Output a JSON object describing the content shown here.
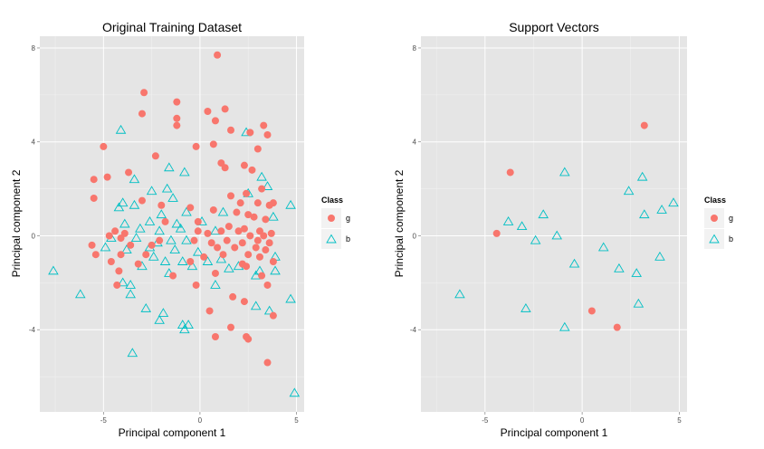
{
  "colors": {
    "panel_bg": "#e5e5e5",
    "grid_major": "#ffffff",
    "grid_minor": "#f2f2f2",
    "class_g": "#f8766d",
    "class_b": "#00bfc4"
  },
  "chart_data": [
    {
      "type": "scatter",
      "title": "Original Training Dataset",
      "xlabel": "Principal component 1",
      "ylabel": "Principal component 2",
      "xlim": [
        -8.3,
        5.4
      ],
      "ylim": [
        -7.5,
        8.5
      ],
      "xticks": [
        -5,
        0,
        5
      ],
      "yticks": [
        -4,
        0,
        4,
        8
      ],
      "grid": true,
      "legend": {
        "title": "Class",
        "position": "right",
        "entries": [
          {
            "label": "g",
            "shape": "circle"
          },
          {
            "label": "b",
            "shape": "triangle"
          }
        ]
      },
      "series": [
        {
          "name": "g",
          "shape": "circle",
          "points": [
            [
              0.9,
              7.7
            ],
            [
              -2.9,
              6.1
            ],
            [
              -1.2,
              5.7
            ],
            [
              -3.0,
              5.2
            ],
            [
              0.4,
              5.3
            ],
            [
              1.3,
              5.4
            ],
            [
              -1.2,
              5.0
            ],
            [
              -1.2,
              4.7
            ],
            [
              0.8,
              4.9
            ],
            [
              3.3,
              4.7
            ],
            [
              1.6,
              4.5
            ],
            [
              2.6,
              4.4
            ],
            [
              3.5,
              4.3
            ],
            [
              -5.0,
              3.8
            ],
            [
              -0.2,
              3.8
            ],
            [
              0.7,
              3.9
            ],
            [
              3.0,
              3.7
            ],
            [
              -2.3,
              3.4
            ],
            [
              1.1,
              3.1
            ],
            [
              2.3,
              3.0
            ],
            [
              -3.7,
              2.7
            ],
            [
              2.7,
              2.8
            ],
            [
              1.3,
              2.9
            ],
            [
              -5.5,
              2.4
            ],
            [
              -4.8,
              2.5
            ],
            [
              3.2,
              2.0
            ],
            [
              -5.5,
              1.6
            ],
            [
              2.4,
              1.8
            ],
            [
              -3.0,
              1.5
            ],
            [
              1.6,
              1.7
            ],
            [
              2.1,
              1.4
            ],
            [
              -2.0,
              1.3
            ],
            [
              3.0,
              1.4
            ],
            [
              3.6,
              1.3
            ],
            [
              -0.5,
              1.2
            ],
            [
              0.7,
              1.1
            ],
            [
              1.9,
              1.0
            ],
            [
              3.8,
              1.4
            ],
            [
              2.5,
              0.9
            ],
            [
              3.4,
              0.7
            ],
            [
              -1.8,
              0.6
            ],
            [
              -0.1,
              0.6
            ],
            [
              2.8,
              0.8
            ],
            [
              1.5,
              0.4
            ],
            [
              2.3,
              0.3
            ],
            [
              3.1,
              0.2
            ],
            [
              3.7,
              0.1
            ],
            [
              -4.4,
              0.2
            ],
            [
              -3.9,
              0.1
            ],
            [
              -0.1,
              0.2
            ],
            [
              0.4,
              0.1
            ],
            [
              1.1,
              0.2
            ],
            [
              2.0,
              0.2
            ],
            [
              2.6,
              0.0
            ],
            [
              3.3,
              0.0
            ],
            [
              -4.7,
              0.0
            ],
            [
              -4.1,
              -0.1
            ],
            [
              -2.1,
              -0.2
            ],
            [
              -0.3,
              -0.2
            ],
            [
              0.6,
              -0.3
            ],
            [
              1.4,
              -0.2
            ],
            [
              2.2,
              -0.3
            ],
            [
              3.0,
              -0.2
            ],
            [
              3.6,
              -0.3
            ],
            [
              -5.6,
              -0.4
            ],
            [
              -3.6,
              -0.4
            ],
            [
              -2.5,
              -0.4
            ],
            [
              0.9,
              -0.5
            ],
            [
              1.8,
              -0.5
            ],
            [
              2.9,
              -0.5
            ],
            [
              3.4,
              -0.6
            ],
            [
              -5.4,
              -0.8
            ],
            [
              -4.1,
              -0.8
            ],
            [
              -2.8,
              -0.8
            ],
            [
              0.2,
              -0.9
            ],
            [
              1.2,
              -0.8
            ],
            [
              2.5,
              -0.8
            ],
            [
              3.1,
              -0.9
            ],
            [
              -4.6,
              -1.1
            ],
            [
              -3.2,
              -1.2
            ],
            [
              -0.5,
              -1.1
            ],
            [
              2.2,
              -1.2
            ],
            [
              3.8,
              -1.1
            ],
            [
              -4.2,
              -1.5
            ],
            [
              -1.4,
              -1.7
            ],
            [
              0.8,
              -1.6
            ],
            [
              2.4,
              -1.3
            ],
            [
              3.2,
              -1.7
            ],
            [
              -4.3,
              -2.1
            ],
            [
              -0.2,
              -2.1
            ],
            [
              3.5,
              -2.1
            ],
            [
              1.7,
              -2.6
            ],
            [
              2.3,
              -2.8
            ],
            [
              0.5,
              -3.2
            ],
            [
              3.8,
              -3.4
            ],
            [
              1.6,
              -3.9
            ],
            [
              2.4,
              -4.3
            ],
            [
              0.8,
              -4.3
            ],
            [
              2.5,
              -4.4
            ],
            [
              3.5,
              -5.4
            ]
          ]
        },
        {
          "name": "b",
          "shape": "triangle",
          "points": [
            [
              -4.1,
              4.5
            ],
            [
              2.4,
              4.4
            ],
            [
              -1.6,
              2.9
            ],
            [
              -0.8,
              2.7
            ],
            [
              3.2,
              2.5
            ],
            [
              -3.4,
              2.4
            ],
            [
              3.5,
              2.1
            ],
            [
              -1.7,
              2.0
            ],
            [
              2.5,
              1.8
            ],
            [
              -2.5,
              1.9
            ],
            [
              -1.4,
              1.6
            ],
            [
              -4.0,
              1.4
            ],
            [
              -3.4,
              1.3
            ],
            [
              -4.2,
              1.2
            ],
            [
              4.7,
              1.3
            ],
            [
              -0.7,
              1.0
            ],
            [
              1.2,
              1.0
            ],
            [
              -2.0,
              0.9
            ],
            [
              3.8,
              0.8
            ],
            [
              -3.9,
              0.5
            ],
            [
              -2.6,
              0.6
            ],
            [
              -1.2,
              0.5
            ],
            [
              0.1,
              0.6
            ],
            [
              -3.1,
              0.3
            ],
            [
              -2.1,
              0.2
            ],
            [
              -1.0,
              0.3
            ],
            [
              0.8,
              0.2
            ],
            [
              -4.6,
              -0.1
            ],
            [
              -3.3,
              -0.1
            ],
            [
              -2.2,
              -0.3
            ],
            [
              -1.5,
              -0.2
            ],
            [
              -0.7,
              -0.2
            ],
            [
              -2.6,
              -0.5
            ],
            [
              -1.3,
              -0.6
            ],
            [
              -0.1,
              -0.7
            ],
            [
              -4.9,
              -0.5
            ],
            [
              -3.8,
              -0.6
            ],
            [
              -2.4,
              -0.9
            ],
            [
              -1.8,
              -1.1
            ],
            [
              -0.9,
              -1.1
            ],
            [
              0.4,
              -1.1
            ],
            [
              1.1,
              -1.0
            ],
            [
              2.0,
              -1.3
            ],
            [
              3.9,
              -0.9
            ],
            [
              -3.0,
              -1.3
            ],
            [
              -0.4,
              -1.3
            ],
            [
              1.5,
              -1.4
            ],
            [
              3.1,
              -1.5
            ],
            [
              -7.6,
              -1.5
            ],
            [
              -1.6,
              -1.6
            ],
            [
              3.9,
              -1.5
            ],
            [
              2.9,
              -1.7
            ],
            [
              -4.0,
              -2.0
            ],
            [
              -3.6,
              -2.1
            ],
            [
              0.8,
              -2.1
            ],
            [
              -6.2,
              -2.5
            ],
            [
              -3.6,
              -2.5
            ],
            [
              4.7,
              -2.7
            ],
            [
              2.9,
              -3.0
            ],
            [
              -2.8,
              -3.1
            ],
            [
              -1.9,
              -3.3
            ],
            [
              -2.1,
              -3.6
            ],
            [
              3.6,
              -3.2
            ],
            [
              -0.9,
              -3.8
            ],
            [
              -0.6,
              -3.8
            ],
            [
              -0.8,
              -4.0
            ],
            [
              -3.5,
              -5.0
            ],
            [
              4.9,
              -6.7
            ]
          ]
        }
      ]
    },
    {
      "type": "scatter",
      "title": "Support Vectors",
      "xlabel": "Principal component 1",
      "ylabel": "Principal component 2",
      "xlim": [
        -8.3,
        5.4
      ],
      "ylim": [
        -7.5,
        8.5
      ],
      "xticks": [
        -5,
        0,
        5
      ],
      "yticks": [
        -4,
        0,
        4,
        8
      ],
      "grid": true,
      "legend": {
        "title": "Class",
        "position": "right",
        "entries": [
          {
            "label": "g",
            "shape": "circle"
          },
          {
            "label": "b",
            "shape": "triangle"
          }
        ]
      },
      "series": [
        {
          "name": "g",
          "shape": "circle",
          "points": [
            [
              3.2,
              4.7
            ],
            [
              -3.7,
              2.7
            ],
            [
              -4.4,
              0.1
            ],
            [
              0.5,
              -3.2
            ],
            [
              1.8,
              -3.9
            ]
          ]
        },
        {
          "name": "b",
          "shape": "triangle",
          "points": [
            [
              -0.9,
              2.7
            ],
            [
              3.1,
              2.5
            ],
            [
              2.4,
              1.9
            ],
            [
              4.7,
              1.4
            ],
            [
              4.1,
              1.1
            ],
            [
              -2.0,
              0.9
            ],
            [
              3.2,
              0.9
            ],
            [
              -3.8,
              0.6
            ],
            [
              -3.1,
              0.4
            ],
            [
              -1.3,
              0.0
            ],
            [
              -2.4,
              -0.2
            ],
            [
              1.1,
              -0.5
            ],
            [
              4.0,
              -0.9
            ],
            [
              -0.4,
              -1.2
            ],
            [
              1.9,
              -1.4
            ],
            [
              2.8,
              -1.6
            ],
            [
              -6.3,
              -2.5
            ],
            [
              2.9,
              -2.9
            ],
            [
              -2.9,
              -3.1
            ],
            [
              -0.9,
              -3.9
            ]
          ]
        }
      ]
    }
  ]
}
